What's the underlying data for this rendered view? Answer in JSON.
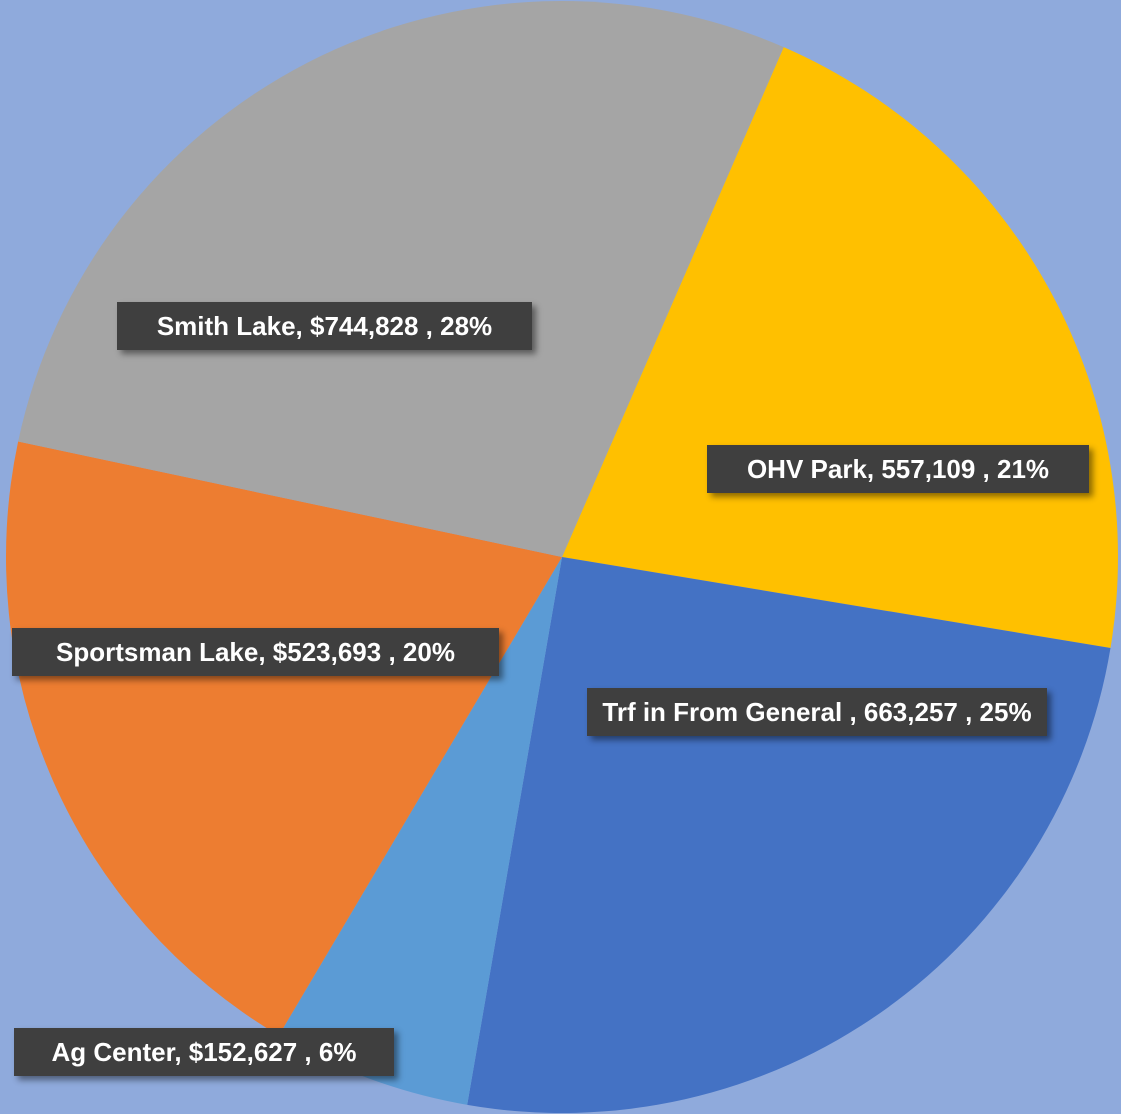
{
  "chart_data": {
    "type": "pie",
    "categories": [
      "OHV Park",
      "Trf in From General",
      "Ag Center",
      "Sportsman Lake",
      "Smith Lake"
    ],
    "values": [
      557109,
      663257,
      152627,
      523693,
      744828
    ],
    "value_labels": [
      "OHV Park, 557,109 , 21%",
      "Trf in From General , 663,257 , 25%",
      "Ag Center, $152,627 , 6%",
      "Sportsman Lake, $523,693 , 20%",
      "Smith Lake, $744,828 , 28%"
    ],
    "colors": [
      "#ffc000",
      "#4472c4",
      "#5b9bd5",
      "#ed7d31",
      "#a5a5a5"
    ]
  }
}
